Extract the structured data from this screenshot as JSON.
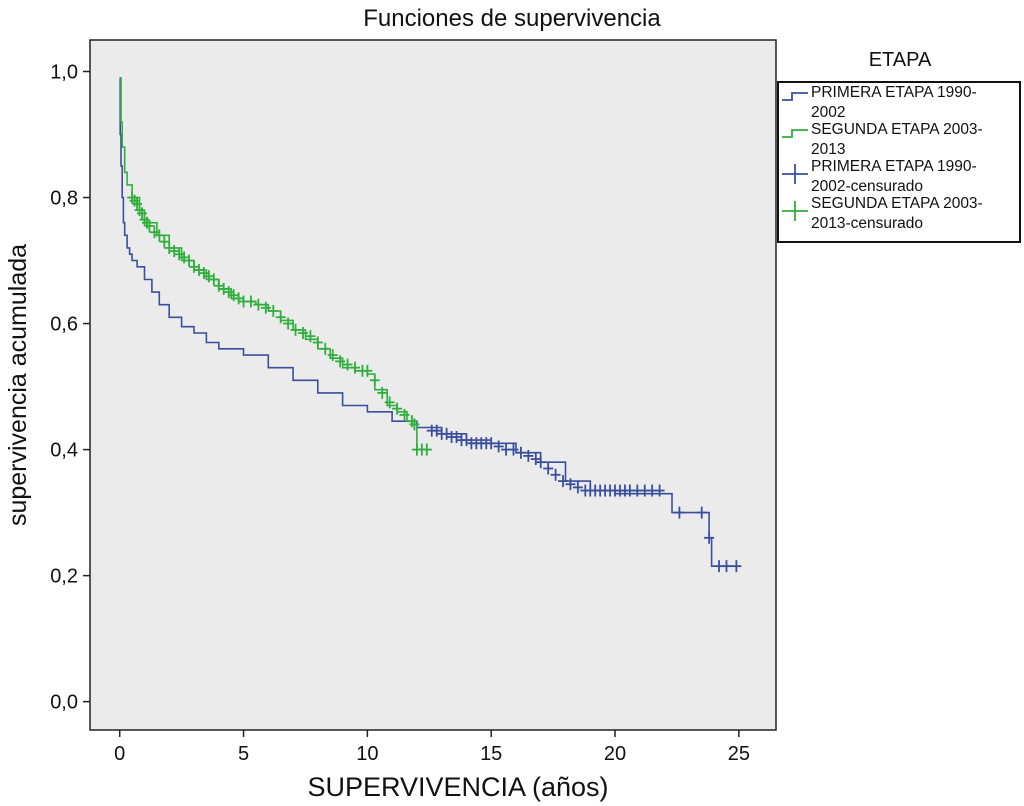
{
  "chart_data": {
    "type": "line",
    "subtype": "kaplan-meier step curve",
    "title": "Funciones de supervivencia",
    "xlabel": "SUPERVIVENCIA (años)",
    "ylabel": "supervivencia acumulada",
    "xlim": [
      -1.2,
      26.5
    ],
    "ylim": [
      -0.045,
      1.05
    ],
    "x_ticks": [
      0,
      5,
      10,
      15,
      20,
      25
    ],
    "y_ticks": [
      0.0,
      0.2,
      0.4,
      0.6,
      0.8,
      1.0
    ],
    "y_tick_labels": [
      "0,0",
      "0,2",
      "0,4",
      "0,6",
      "0,8",
      "1,0"
    ],
    "x_tick_labels": [
      "0",
      "5",
      "10",
      "15",
      "20",
      "25"
    ],
    "grid": false,
    "plot_background": "#ebebeb",
    "legend": {
      "title": "ETAPA",
      "position": "right",
      "entries": [
        {
          "label": "PRIMERA ETAPA 1990-2002",
          "line1": "PRIMERA ETAPA 1990-",
          "line2": "2002",
          "color": "#3a4e9e",
          "marker": "step"
        },
        {
          "label": "SEGUNDA ETAPA 2003-2013",
          "line1": "SEGUNDA ETAPA 2003-",
          "line2": "2013",
          "color": "#2fae3c",
          "marker": "step"
        },
        {
          "label": "PRIMERA ETAPA 1990-2002-censurado",
          "line1": "PRIMERA ETAPA 1990-",
          "line2": "2002-censurado",
          "color": "#3a4e9e",
          "marker": "plus"
        },
        {
          "label": "SEGUNDA ETAPA 2003-2013-censurado",
          "line1": "SEGUNDA ETAPA 2003-",
          "line2": "2013-censurado",
          "color": "#2fae3c",
          "marker": "plus"
        }
      ]
    },
    "series": [
      {
        "name": "PRIMERA ETAPA 1990-2002",
        "color": "#3a4e9e",
        "x": [
          0,
          0.02,
          0.05,
          0.1,
          0.15,
          0.2,
          0.3,
          0.4,
          0.5,
          0.7,
          1.0,
          1.3,
          1.6,
          2.0,
          2.5,
          3.0,
          3.5,
          4.0,
          5.0,
          6.0,
          7.0,
          8.0,
          9.0,
          10.0,
          11.0,
          12.0,
          13.0,
          14.0,
          15.0,
          16.0,
          17.0,
          18.0,
          19.0,
          20.0,
          22.0,
          22.3,
          23.7,
          23.8,
          23.9,
          24.5,
          25.0
        ],
        "y": [
          0.99,
          0.9,
          0.85,
          0.8,
          0.76,
          0.74,
          0.72,
          0.71,
          0.7,
          0.69,
          0.67,
          0.65,
          0.63,
          0.61,
          0.595,
          0.585,
          0.57,
          0.56,
          0.55,
          0.53,
          0.51,
          0.49,
          0.47,
          0.46,
          0.445,
          0.435,
          0.425,
          0.415,
          0.41,
          0.395,
          0.38,
          0.35,
          0.335,
          0.33,
          0.33,
          0.3,
          0.3,
          0.26,
          0.215,
          0.215,
          0.215
        ]
      },
      {
        "name": "SEGUNDA ETAPA 2003-2013",
        "color": "#2fae3c",
        "x": [
          0,
          0.05,
          0.1,
          0.2,
          0.3,
          0.5,
          0.8,
          1.0,
          1.5,
          2.0,
          2.5,
          3.0,
          3.5,
          4.0,
          4.5,
          5.0,
          5.5,
          6.0,
          6.5,
          7.0,
          7.5,
          8.0,
          8.5,
          9.0,
          9.5,
          10.0,
          10.3,
          10.8,
          11.2,
          11.6,
          11.9,
          12.0,
          12.4
        ],
        "y": [
          0.99,
          0.92,
          0.88,
          0.84,
          0.82,
          0.8,
          0.78,
          0.76,
          0.74,
          0.72,
          0.7,
          0.685,
          0.67,
          0.655,
          0.64,
          0.635,
          0.63,
          0.62,
          0.605,
          0.59,
          0.575,
          0.56,
          0.545,
          0.53,
          0.525,
          0.52,
          0.495,
          0.47,
          0.46,
          0.445,
          0.44,
          0.4,
          0.4
        ]
      }
    ],
    "censored": [
      {
        "name": "PRIMERA ETAPA 1990-2002-censurado",
        "color": "#3a4e9e",
        "x": [
          12.6,
          12.8,
          13.0,
          13.2,
          13.4,
          13.6,
          13.8,
          14.0,
          14.2,
          14.4,
          14.6,
          14.8,
          15.0,
          15.3,
          15.6,
          15.9,
          16.2,
          16.5,
          16.8,
          17.0,
          17.3,
          17.6,
          17.9,
          18.2,
          18.5,
          18.8,
          19.0,
          19.2,
          19.4,
          19.6,
          19.8,
          20.0,
          20.2,
          20.4,
          20.6,
          20.9,
          21.2,
          21.5,
          21.8,
          22.6,
          23.5,
          23.8,
          24.2,
          24.5,
          24.9
        ],
        "y": [
          0.43,
          0.43,
          0.425,
          0.425,
          0.42,
          0.42,
          0.415,
          0.415,
          0.41,
          0.41,
          0.41,
          0.41,
          0.41,
          0.405,
          0.4,
          0.4,
          0.395,
          0.39,
          0.385,
          0.38,
          0.37,
          0.36,
          0.35,
          0.345,
          0.34,
          0.335,
          0.335,
          0.335,
          0.335,
          0.335,
          0.335,
          0.335,
          0.335,
          0.335,
          0.335,
          0.335,
          0.335,
          0.335,
          0.335,
          0.3,
          0.3,
          0.26,
          0.215,
          0.215,
          0.215
        ]
      },
      {
        "name": "SEGUNDA ETAPA 2003-2013-censurado",
        "color": "#2fae3c",
        "x": [
          0.5,
          0.6,
          0.7,
          0.8,
          0.9,
          1.0,
          1.1,
          1.2,
          1.4,
          1.6,
          1.8,
          2.0,
          2.2,
          2.4,
          2.6,
          2.8,
          3.0,
          3.2,
          3.4,
          3.6,
          3.8,
          4.0,
          4.2,
          4.4,
          4.6,
          4.8,
          5.0,
          5.3,
          5.6,
          5.9,
          6.2,
          6.5,
          6.8,
          7.1,
          7.4,
          7.7,
          8.0,
          8.3,
          8.6,
          8.9,
          9.2,
          9.5,
          9.8,
          10.0,
          10.3,
          10.6,
          10.9,
          11.2,
          11.5,
          11.8,
          11.9,
          12.0,
          12.2,
          12.4
        ],
        "y": [
          0.8,
          0.795,
          0.79,
          0.78,
          0.775,
          0.765,
          0.76,
          0.755,
          0.745,
          0.74,
          0.73,
          0.72,
          0.715,
          0.71,
          0.705,
          0.7,
          0.69,
          0.685,
          0.68,
          0.675,
          0.67,
          0.66,
          0.655,
          0.65,
          0.645,
          0.64,
          0.635,
          0.635,
          0.63,
          0.625,
          0.62,
          0.61,
          0.6,
          0.59,
          0.585,
          0.58,
          0.57,
          0.56,
          0.55,
          0.54,
          0.535,
          0.53,
          0.525,
          0.525,
          0.51,
          0.49,
          0.475,
          0.465,
          0.455,
          0.445,
          0.44,
          0.4,
          0.4,
          0.4
        ]
      }
    ]
  }
}
